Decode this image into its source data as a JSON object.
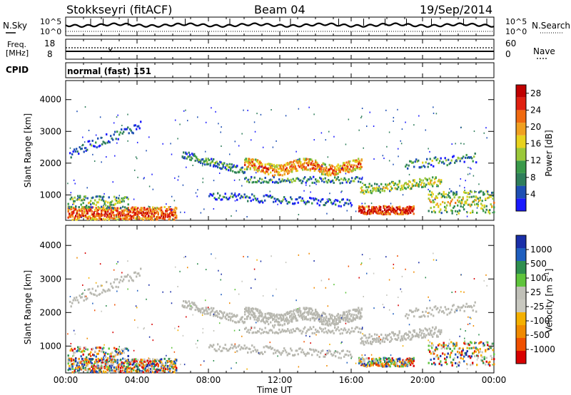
{
  "header": {
    "station": "Stokkseyri (fitACF)",
    "beam": "Beam 04",
    "date": "19/Sep/2014"
  },
  "colors": {
    "power": [
      "#1a1aff",
      "#1e4fb4",
      "#2f7e5b",
      "#3a9a4a",
      "#9bc83a",
      "#e8d21e",
      "#f0a020",
      "#f06a10",
      "#e02010",
      "#c00000"
    ],
    "velocity": [
      "#d80000",
      "#f05000",
      "#f08a00",
      "#f4b000",
      "#c8c8c0",
      "#c0c0b8",
      "#5fc43c",
      "#2f8f4f",
      "#1f5fbf",
      "#1a2fa8"
    ],
    "ground_scatter": "#b8b8b0"
  },
  "chart_data": [
    {
      "type": "line",
      "name": "noise-panel",
      "left_label": "N.Sky",
      "right_label": "N.Search",
      "left_ticks": [
        "10^5",
        "10^0"
      ],
      "right_ticks": [
        "10^5",
        "10^0"
      ]
    },
    {
      "type": "line",
      "name": "freq-panel",
      "left_label_1": "Freq.",
      "left_label_2": "[MHz]",
      "right_label": "Nave",
      "left_ticks": [
        "18",
        "8"
      ],
      "right_ticks": [
        "60",
        "0"
      ]
    },
    {
      "type": "table",
      "name": "cpid-panel",
      "label": "CPID",
      "text": "normal (fast) 151"
    },
    {
      "type": "heatmap",
      "name": "power-panel",
      "ylabel": "Slant Range [km]",
      "y_ticks": [
        1000,
        2000,
        3000,
        4000
      ],
      "ylim": [
        200,
        4600
      ],
      "colorbar_label": "Power [dB]",
      "colorbar_ticks": [
        "28",
        "24",
        "20",
        "16",
        "12",
        "8",
        "4"
      ],
      "colorbar_range": [
        0,
        30
      ]
    },
    {
      "type": "heatmap",
      "name": "velocity-panel",
      "ylabel": "Slant Range [km]",
      "y_ticks": [
        1000,
        2000,
        3000,
        4000
      ],
      "ylim": [
        200,
        4600
      ],
      "colorbar_label": "Velocity [m s^-1]",
      "colorbar_label_main": "Velocity [m s",
      "colorbar_label_exp": "-1",
      "colorbar_label_end": "]",
      "colorbar_ticks": [
        "1000",
        "500",
        "100",
        "25",
        "-25",
        "-100",
        "-500",
        "-1000"
      ]
    }
  ],
  "x_axis": {
    "label": "Time UT",
    "ticks": [
      "00:00",
      "04:00",
      "08:00",
      "12:00",
      "16:00",
      "20:00",
      "00:00"
    ],
    "range_hours": [
      0,
      24
    ]
  }
}
